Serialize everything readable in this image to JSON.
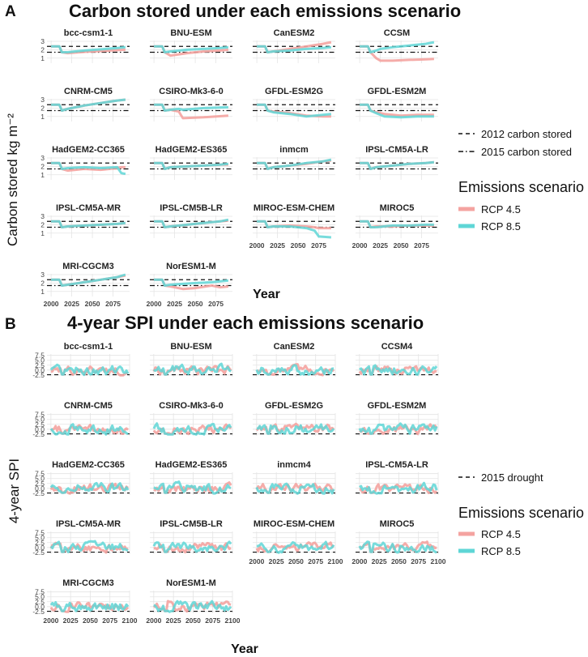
{
  "colors": {
    "rcp45": "#f4a3a0",
    "rcp85": "#5fd6d6",
    "panel_bg": "#ffffff",
    "grid": "#e4e4e4",
    "text": "#111111"
  },
  "chart_data": [
    {
      "type": "line",
      "panel_letter": "A",
      "title": "Carbon stored under each emissions scenario",
      "xlabel": "Year",
      "ylabel": "Carbon stored kg  m⁻²",
      "xlim": [
        1995,
        2095
      ],
      "ylim": [
        0.4,
        3.1
      ],
      "yticks": [
        "1",
        "2",
        "3"
      ],
      "ytick_values": [
        1,
        2,
        3
      ],
      "xticks": [
        "2000",
        "2025",
        "2050",
        "2075"
      ],
      "xtick_values": [
        2000,
        2025,
        2050,
        2075
      ],
      "reference_lines": [
        {
          "label": "2012 carbon stored",
          "value": 2.4,
          "style": "dashed"
        },
        {
          "label": "2015 carbon stored",
          "value": 1.7,
          "style": "dotdash"
        }
      ],
      "legend_title": "Emissions scenario",
      "series_names": [
        "RCP 4.5",
        "RCP 8.5"
      ],
      "panels": [
        {
          "model": "bcc-csm1-1",
          "x": [
            2000,
            2010,
            2013,
            2020,
            2040,
            2060,
            2080,
            2090
          ],
          "rcp45": [
            2.4,
            2.4,
            1.7,
            1.6,
            1.75,
            1.85,
            1.95,
            2.0
          ],
          "rcp85": [
            2.4,
            2.4,
            1.7,
            1.7,
            1.9,
            2.05,
            2.2,
            2.3
          ]
        },
        {
          "model": "BNU-ESM",
          "x": [
            2000,
            2010,
            2013,
            2020,
            2040,
            2060,
            2080,
            2090
          ],
          "rcp45": [
            2.4,
            2.4,
            1.7,
            1.3,
            1.6,
            1.8,
            1.9,
            2.0
          ],
          "rcp85": [
            2.4,
            2.4,
            1.7,
            1.8,
            2.0,
            2.1,
            2.2,
            2.3
          ]
        },
        {
          "model": "CanESM2",
          "x": [
            2000,
            2010,
            2013,
            2020,
            2040,
            2060,
            2080,
            2090
          ],
          "rcp45": [
            2.4,
            2.4,
            1.7,
            1.8,
            2.1,
            2.4,
            2.7,
            2.9
          ],
          "rcp85": [
            2.4,
            2.4,
            1.7,
            1.8,
            1.9,
            2.1,
            2.2,
            2.3
          ]
        },
        {
          "model": "CCSM",
          "x": [
            2000,
            2010,
            2013,
            2020,
            2025,
            2040,
            2060,
            2080,
            2090
          ],
          "rcp45": [
            2.4,
            2.4,
            1.7,
            1.0,
            0.7,
            0.7,
            0.8,
            0.85,
            0.9
          ],
          "rcp85": [
            2.4,
            2.4,
            1.7,
            1.9,
            2.1,
            2.3,
            2.5,
            2.7,
            2.9
          ]
        },
        {
          "model": "CNRM-CM5",
          "x": [
            2000,
            2010,
            2013,
            2020,
            2040,
            2060,
            2080,
            2090
          ],
          "rcp45": [
            2.4,
            2.4,
            1.7,
            1.9,
            2.3,
            2.6,
            2.9,
            3.0
          ],
          "rcp85": [
            2.4,
            2.4,
            1.7,
            1.9,
            2.3,
            2.6,
            2.9,
            3.0
          ]
        },
        {
          "model": "CSIRO-Mk3-6-0",
          "x": [
            2000,
            2010,
            2013,
            2020,
            2030,
            2035,
            2060,
            2090
          ],
          "rcp45": [
            2.4,
            2.4,
            1.7,
            1.8,
            1.6,
            0.8,
            0.9,
            1.1
          ],
          "rcp85": [
            2.4,
            2.4,
            1.7,
            1.8,
            1.9,
            1.8,
            2.0,
            2.1
          ]
        },
        {
          "model": "GFDL-ESM2G",
          "x": [
            2000,
            2010,
            2013,
            2020,
            2040,
            2060,
            2080,
            2090
          ],
          "rcp45": [
            2.4,
            2.4,
            1.7,
            1.6,
            1.4,
            1.1,
            1.0,
            1.0
          ],
          "rcp85": [
            2.4,
            2.4,
            1.7,
            1.5,
            1.3,
            1.0,
            1.2,
            1.3
          ]
        },
        {
          "model": "GFDL-ESM2M",
          "x": [
            2000,
            2010,
            2013,
            2020,
            2030,
            2050,
            2070,
            2090
          ],
          "rcp45": [
            2.4,
            2.4,
            1.7,
            1.5,
            1.3,
            1.1,
            1.2,
            1.2
          ],
          "rcp85": [
            2.4,
            2.4,
            1.7,
            1.4,
            1.0,
            0.9,
            1.0,
            1.0
          ]
        },
        {
          "model": "HadGEM2-CC365",
          "x": [
            2000,
            2010,
            2013,
            2020,
            2040,
            2060,
            2080,
            2085,
            2090
          ],
          "rcp45": [
            2.4,
            2.4,
            1.7,
            1.5,
            1.7,
            1.6,
            1.8,
            1.9,
            1.9
          ],
          "rcp85": [
            2.4,
            2.4,
            1.7,
            1.8,
            1.9,
            1.8,
            1.9,
            1.2,
            1.1
          ]
        },
        {
          "model": "HadGEM2-ES365",
          "x": [
            2000,
            2010,
            2013,
            2020,
            2040,
            2060,
            2080,
            2090
          ],
          "rcp45": [
            2.4,
            2.4,
            1.7,
            1.9,
            2.0,
            2.1,
            2.2,
            2.2
          ],
          "rcp85": [
            2.4,
            2.4,
            1.7,
            1.9,
            2.0,
            2.1,
            2.2,
            2.3
          ]
        },
        {
          "model": "inmcm",
          "x": [
            2000,
            2010,
            2013,
            2020,
            2040,
            2060,
            2080,
            2090
          ],
          "rcp45": [
            2.4,
            2.4,
            1.7,
            1.9,
            2.1,
            2.3,
            2.6,
            2.7
          ],
          "rcp85": [
            2.4,
            2.4,
            1.7,
            1.9,
            2.1,
            2.4,
            2.6,
            2.8
          ]
        },
        {
          "model": "IPSL-CM5A-LR",
          "x": [
            2000,
            2010,
            2013,
            2020,
            2040,
            2060,
            2080,
            2090
          ],
          "rcp45": [
            2.4,
            2.4,
            1.7,
            1.9,
            2.1,
            2.3,
            2.4,
            2.5
          ],
          "rcp85": [
            2.4,
            2.4,
            1.7,
            1.9,
            2.1,
            2.3,
            2.4,
            2.5
          ]
        },
        {
          "model": "IPSL-CM5A-MR",
          "x": [
            2000,
            2010,
            2013,
            2020,
            2040,
            2060,
            2080,
            2090
          ],
          "rcp45": [
            2.4,
            2.4,
            1.7,
            1.8,
            1.9,
            2.0,
            2.1,
            2.2
          ],
          "rcp85": [
            2.4,
            2.4,
            1.7,
            1.8,
            1.9,
            2.0,
            2.1,
            2.2
          ]
        },
        {
          "model": "IPSL-CM5B-LR",
          "x": [
            2000,
            2010,
            2013,
            2020,
            2040,
            2060,
            2080,
            2090
          ],
          "rcp45": [
            2.4,
            2.4,
            1.7,
            1.8,
            2.0,
            2.2,
            2.4,
            2.5
          ],
          "rcp85": [
            2.4,
            2.4,
            1.7,
            1.8,
            2.0,
            2.2,
            2.4,
            2.6
          ]
        },
        {
          "model": "MIROC-ESM-CHEM",
          "x": [
            2000,
            2010,
            2013,
            2020,
            2040,
            2060,
            2070,
            2075,
            2090
          ],
          "rcp45": [
            2.4,
            2.4,
            1.7,
            1.8,
            1.9,
            1.8,
            1.7,
            1.6,
            1.6
          ],
          "rcp85": [
            2.4,
            2.4,
            1.7,
            1.8,
            1.8,
            1.6,
            1.3,
            0.6,
            0.5
          ]
        },
        {
          "model": "MIROC5",
          "x": [
            2000,
            2010,
            2013,
            2020,
            2040,
            2060,
            2080,
            2090
          ],
          "rcp45": [
            2.4,
            2.4,
            1.7,
            1.8,
            1.8,
            1.9,
            1.9,
            1.9
          ],
          "rcp85": [
            2.4,
            2.4,
            1.7,
            1.7,
            1.9,
            1.9,
            2.0,
            2.0
          ]
        },
        {
          "model": "MRI-CGCM3",
          "x": [
            2000,
            2010,
            2013,
            2020,
            2040,
            2060,
            2080,
            2090
          ],
          "rcp45": [
            2.4,
            2.4,
            1.7,
            1.8,
            2.1,
            2.4,
            2.7,
            2.9
          ],
          "rcp85": [
            2.4,
            2.4,
            1.7,
            1.8,
            2.1,
            2.4,
            2.7,
            3.0
          ]
        },
        {
          "model": "NorESM1-M",
          "x": [
            2000,
            2010,
            2013,
            2020,
            2035,
            2050,
            2070,
            2080,
            2090
          ],
          "rcp45": [
            2.4,
            2.4,
            1.7,
            1.6,
            1.3,
            1.4,
            1.7,
            1.5,
            1.6
          ],
          "rcp85": [
            2.4,
            2.4,
            1.7,
            1.8,
            1.9,
            2.0,
            2.1,
            2.2,
            2.3
          ]
        }
      ]
    },
    {
      "type": "line",
      "panel_letter": "B",
      "title": "4-year SPI under each emissions scenario",
      "xlabel": "Year",
      "ylabel": "4-year SPI",
      "xlim": [
        1995,
        2100
      ],
      "ylim": [
        -3.4,
        8.2
      ],
      "yticks": [
        "7.5",
        "5.0",
        "2.5",
        "0.0",
        "-2.5"
      ],
      "ytick_values": [
        7.5,
        5.0,
        2.5,
        0.0,
        -2.5
      ],
      "xticks": [
        "2000",
        "2025",
        "2050",
        "2075",
        "2100"
      ],
      "xtick_values": [
        2000,
        2025,
        2050,
        2075,
        2100
      ],
      "reference_lines": [
        {
          "label": "2015 drought",
          "value": -2.4,
          "style": "dashed"
        }
      ],
      "legend_title": "Emissions scenario",
      "series_names": [
        "RCP 4.5",
        "RCP 8.5"
      ],
      "panels": [
        {
          "model": "bcc-csm1-1"
        },
        {
          "model": "BNU-ESM"
        },
        {
          "model": "CanESM2"
        },
        {
          "model": "CCSM4"
        },
        {
          "model": "CNRM-CM5"
        },
        {
          "model": "CSIRO-Mk3-6-0"
        },
        {
          "model": "GFDL-ESM2G"
        },
        {
          "model": "GFDL-ESM2M"
        },
        {
          "model": "HadGEM2-CC365"
        },
        {
          "model": "HadGEM2-ES365"
        },
        {
          "model": "inmcm4"
        },
        {
          "model": "IPSL-CM5A-LR"
        },
        {
          "model": "IPSL-CM5A-MR"
        },
        {
          "model": "IPSL-CM5B-LR"
        },
        {
          "model": "MIROC-ESM-CHEM"
        },
        {
          "model": "MIROC5"
        },
        {
          "model": "MRI-CGCM3"
        },
        {
          "model": "NorESM1-M"
        }
      ]
    }
  ]
}
